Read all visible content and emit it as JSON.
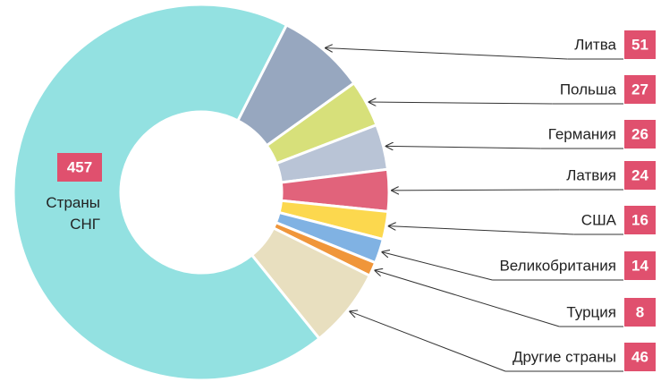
{
  "chart_data": {
    "type": "donut",
    "categories": [
      "Страны СНГ",
      "Литва",
      "Польша",
      "Германия",
      "Латвия",
      "США",
      "Великобритания",
      "Турция",
      "Другие страны"
    ],
    "values": [
      457,
      51,
      27,
      26,
      24,
      16,
      14,
      8,
      46
    ],
    "colors": [
      "#93e1e1",
      "#97a7bf",
      "#d7e07a",
      "#b9c4d6",
      "#e1637b",
      "#fcd84e",
      "#80b2e3",
      "#f0963a",
      "#e8dfbf"
    ],
    "label_color": "#e0506e"
  }
}
